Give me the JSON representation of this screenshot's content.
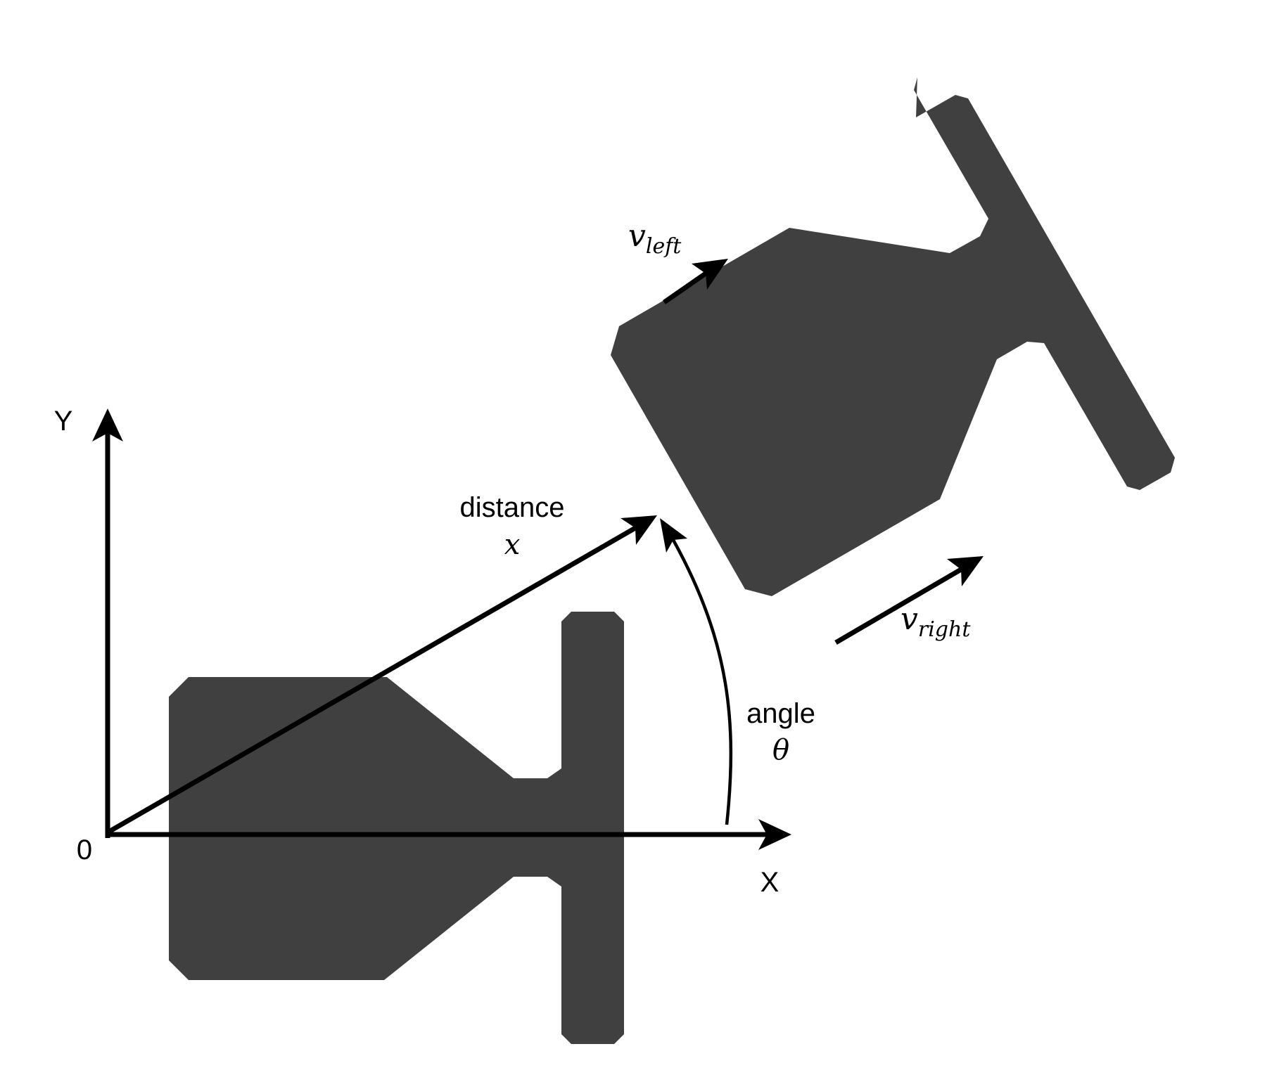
{
  "axes": {
    "y_label": "Y",
    "x_label": "X",
    "origin_label": "0"
  },
  "distance": {
    "label": "distance",
    "symbol": "x"
  },
  "angle": {
    "label": "angle",
    "symbol": "θ"
  },
  "velocity_left": {
    "symbol": "v",
    "subscript": "left"
  },
  "velocity_right": {
    "symbol": "v",
    "subscript": "right"
  },
  "colors": {
    "robot": "#404040",
    "lines": "#000000",
    "background": "#ffffff"
  }
}
